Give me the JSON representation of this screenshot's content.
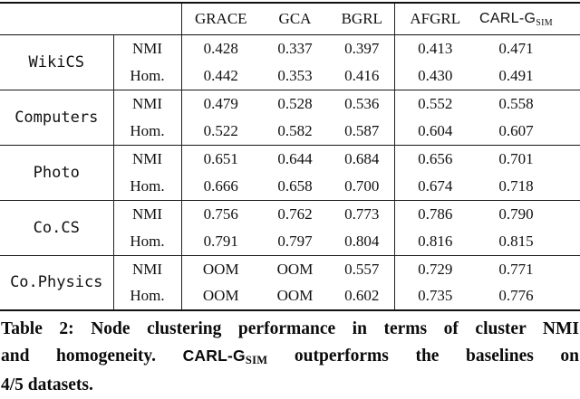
{
  "page": {
    "background_color": "#ffffff",
    "text_color": "#111111",
    "rule_color": "#111111"
  },
  "table": {
    "header": {
      "grace": "GRACE",
      "gca": "GCA",
      "bgrl": "BGRL",
      "afgrl": "AFGRL",
      "carlg": "CARL-G",
      "carlg_sub": "SIM"
    },
    "rows": [
      {
        "dataset": "WikiCS",
        "metrics": [
          {
            "label": "NMI",
            "values": [
              "0.428",
              "0.337",
              "0.397",
              "0.413",
              "0.471"
            ],
            "bold": [
              4
            ]
          },
          {
            "label": "Hom.",
            "values": [
              "0.442",
              "0.353",
              "0.416",
              "0.430",
              "0.491"
            ],
            "bold": [
              4
            ]
          }
        ]
      },
      {
        "dataset": "Computers",
        "metrics": [
          {
            "label": "NMI",
            "values": [
              "0.479",
              "0.528",
              "0.536",
              "0.552",
              "0.558"
            ],
            "bold": [
              4
            ]
          },
          {
            "label": "Hom.",
            "values": [
              "0.522",
              "0.582",
              "0.587",
              "0.604",
              "0.607"
            ],
            "bold": [
              4
            ]
          }
        ]
      },
      {
        "dataset": "Photo",
        "metrics": [
          {
            "label": "NMI",
            "values": [
              "0.651",
              "0.644",
              "0.684",
              "0.656",
              "0.701"
            ],
            "bold": [
              4
            ]
          },
          {
            "label": "Hom.",
            "values": [
              "0.666",
              "0.658",
              "0.700",
              "0.674",
              "0.718"
            ],
            "bold": [
              4
            ]
          }
        ]
      },
      {
        "dataset": "Co.CS",
        "metrics": [
          {
            "label": "NMI",
            "values": [
              "0.756",
              "0.762",
              "0.773",
              "0.786",
              "0.790"
            ],
            "bold": [
              4
            ]
          },
          {
            "label": "Hom.",
            "values": [
              "0.791",
              "0.797",
              "0.804",
              "0.816",
              "0.815"
            ],
            "bold": [
              3
            ]
          }
        ]
      },
      {
        "dataset": "Co.Physics",
        "metrics": [
          {
            "label": "NMI",
            "values": [
              "OOM",
              "OOM",
              "0.557",
              "0.729",
              "0.771"
            ],
            "bold": [
              4
            ]
          },
          {
            "label": "Hom.",
            "values": [
              "OOM",
              "OOM",
              "0.602",
              "0.735",
              "0.776"
            ],
            "bold": [
              4
            ]
          }
        ]
      }
    ]
  },
  "caption": {
    "line1": "Table 2: Node clustering performance in terms of cluster NMI",
    "line2_pre": "and homogeneity. ",
    "brand": "CARL-G",
    "brand_sub": "SIM",
    "line2_post": " outperforms the baselines on",
    "line3": "4/5 datasets."
  }
}
